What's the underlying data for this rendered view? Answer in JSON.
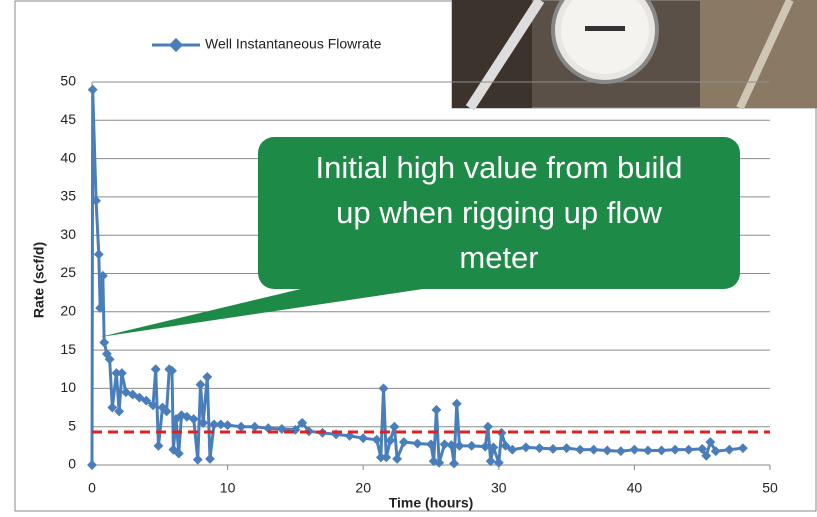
{
  "chart_data": {
    "type": "line",
    "legend": "Well Instantaneous Flowrate",
    "x_label": "Time (hours)",
    "y_label": "Rate (scf/d)",
    "annotation": [
      "Initial high value from build",
      "up when rigging up flow",
      "meter"
    ],
    "xlim": [
      0,
      50
    ],
    "xticks": [
      0,
      10,
      20,
      30,
      40,
      50
    ],
    "ylim": [
      0,
      50
    ],
    "yticks": [
      0,
      5,
      10,
      15,
      20,
      25,
      30,
      35,
      40,
      45,
      50
    ],
    "grid": true,
    "reference_line": {
      "value": 4.3,
      "color": "#e02020"
    },
    "series": [
      {
        "name": "Well Instantaneous Flowrate",
        "color": "#4a7ebb",
        "x": [
          0,
          0.05,
          0.3,
          0.5,
          0.6,
          0.8,
          0.9,
          1.1,
          1.3,
          1.5,
          1.8,
          2.0,
          2.2,
          2.5,
          3,
          3.5,
          4,
          4.5,
          4.7,
          4.9,
          5.2,
          5.5,
          5.7,
          5.9,
          6.0,
          6.2,
          6.4,
          6.6,
          7,
          7.5,
          7.8,
          8.0,
          8.2,
          8.5,
          8.7,
          9,
          9.5,
          10,
          11,
          12,
          13,
          14,
          15,
          15.5,
          16,
          17,
          18,
          19,
          20,
          21,
          21.3,
          21.5,
          21.7,
          22,
          22.3,
          22.5,
          23,
          24,
          25,
          25.2,
          25.4,
          25.6,
          26,
          26.5,
          26.7,
          26.9,
          27.1,
          28,
          29,
          29.2,
          29.4,
          29.6,
          30,
          30.2,
          30.5,
          31,
          32,
          33,
          34,
          35,
          36,
          37,
          38,
          39,
          40,
          41,
          42,
          43,
          44,
          45,
          45.3,
          45.6,
          46,
          47,
          48
        ],
        "values": [
          0,
          49,
          34.5,
          27.5,
          20.5,
          24.7,
          16,
          14.5,
          13.8,
          7.5,
          12,
          7,
          12,
          9.5,
          9.2,
          8.8,
          8.4,
          7.8,
          12.5,
          2.5,
          7.5,
          7,
          12.5,
          12.3,
          2,
          6,
          1.5,
          6.5,
          6.3,
          6,
          0.7,
          10.5,
          5.5,
          11.5,
          0.8,
          5.3,
          5.3,
          5.2,
          5,
          5,
          4.8,
          4.7,
          4.6,
          5.5,
          4.4,
          4.2,
          4,
          3.8,
          3.5,
          3.3,
          1,
          10,
          1,
          3.2,
          5,
          0.8,
          3,
          2.8,
          2.7,
          0.5,
          7.2,
          0.3,
          2.7,
          2.6,
          0.2,
          8,
          2.5,
          2.5,
          2.4,
          5,
          0.5,
          2.3,
          0.3,
          4.2,
          2.5,
          2,
          2.3,
          2.2,
          2.1,
          2.2,
          2,
          2,
          1.9,
          1.8,
          2,
          1.9,
          1.9,
          2,
          2,
          2.1,
          1.2,
          3,
          1.8,
          2,
          2.2
        ]
      }
    ]
  }
}
